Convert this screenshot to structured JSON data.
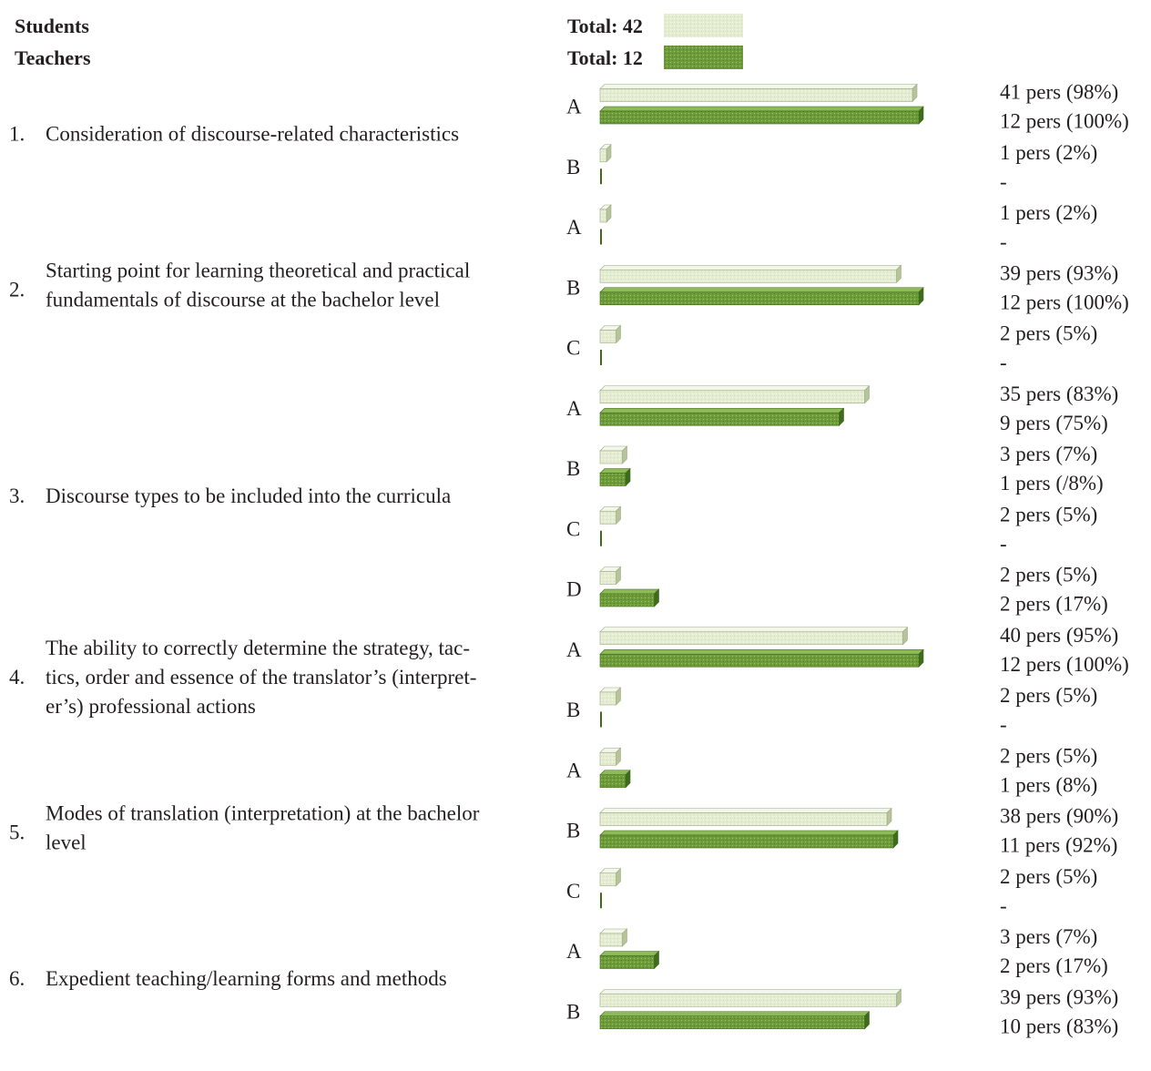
{
  "chart_data": {
    "type": "bar",
    "orientation": "horizontal",
    "series": [
      {
        "name": "Students",
        "total_label": "Total: 42",
        "total": 42,
        "fill_color": "#e2ebce",
        "edge_color": "#9aaa80"
      },
      {
        "name": "Teachers",
        "total_label": "Total: 12",
        "total": 12,
        "fill_color": "#6b9a38",
        "edge_color": "#3e6a1a"
      }
    ],
    "max_percent": 100,
    "questions": [
      {
        "number": "1.",
        "lines": [
          "Consideration of discourse-related characteristics"
        ],
        "options": [
          {
            "letter": "A",
            "students": {
              "pct": 98,
              "label": "41 pers (98%)"
            },
            "teachers": {
              "pct": 100,
              "label": "12 pers (100%)"
            }
          },
          {
            "letter": "B",
            "students": {
              "pct": 2,
              "label": "1 pers (2%)"
            },
            "teachers": {
              "pct": 0,
              "label": "-"
            }
          }
        ]
      },
      {
        "number": "2.",
        "lines": [
          "Starting point for learning theoretical and practical",
          "fundamentals of discourse at the bachelor level"
        ],
        "options": [
          {
            "letter": "A",
            "students": {
              "pct": 2,
              "label": "1 pers (2%)"
            },
            "teachers": {
              "pct": 0,
              "label": "-"
            }
          },
          {
            "letter": "B",
            "students": {
              "pct": 93,
              "label": "39 pers (93%)"
            },
            "teachers": {
              "pct": 100,
              "label": "12 pers (100%)"
            }
          },
          {
            "letter": "C",
            "students": {
              "pct": 5,
              "label": "2 pers (5%)"
            },
            "teachers": {
              "pct": 0,
              "label": "-"
            }
          }
        ]
      },
      {
        "number": "3.",
        "lines": [
          "Discourse types to be included into the curricula"
        ],
        "options": [
          {
            "letter": "A",
            "students": {
              "pct": 83,
              "label": "35 pers (83%)"
            },
            "teachers": {
              "pct": 75,
              "label": "9 pers (75%)"
            }
          },
          {
            "letter": "B",
            "students": {
              "pct": 7,
              "label": "3 pers (7%)"
            },
            "teachers": {
              "pct": 8,
              "label": "1 pers (/8%)"
            }
          },
          {
            "letter": "C",
            "students": {
              "pct": 5,
              "label": "2 pers (5%)"
            },
            "teachers": {
              "pct": 0,
              "label": "-"
            }
          },
          {
            "letter": "D",
            "students": {
              "pct": 5,
              "label": "2 pers (5%)"
            },
            "teachers": {
              "pct": 17,
              "label": "2 pers (17%)"
            }
          }
        ]
      },
      {
        "number": "4.",
        "lines": [
          "The ability to correctly determine the strategy, tac-",
          "tics, order and essence of the translator’s (interpret-",
          "er’s) professional actions"
        ],
        "options": [
          {
            "letter": "A",
            "students": {
              "pct": 95,
              "label": "40 pers (95%)"
            },
            "teachers": {
              "pct": 100,
              "label": "12 pers (100%)"
            }
          },
          {
            "letter": "B",
            "students": {
              "pct": 5,
              "label": "2 pers (5%)"
            },
            "teachers": {
              "pct": 0,
              "label": "-"
            }
          }
        ]
      },
      {
        "number": "5.",
        "lines": [
          "Modes of translation (interpretation) at the bachelor",
          "level"
        ],
        "options": [
          {
            "letter": "A",
            "students": {
              "pct": 5,
              "label": "2 pers (5%)"
            },
            "teachers": {
              "pct": 8,
              "label": "1 pers (8%)"
            }
          },
          {
            "letter": "B",
            "students": {
              "pct": 90,
              "label": "38 pers (90%)"
            },
            "teachers": {
              "pct": 92,
              "label": "11 pers (92%)"
            }
          },
          {
            "letter": "C",
            "students": {
              "pct": 5,
              "label": "2 pers (5%)"
            },
            "teachers": {
              "pct": 0,
              "label": "-"
            }
          }
        ]
      },
      {
        "number": "6.",
        "lines": [
          "Expedient teaching/learning forms and methods"
        ],
        "options": [
          {
            "letter": "A",
            "students": {
              "pct": 7,
              "label": "3 pers (7%)"
            },
            "teachers": {
              "pct": 17,
              "label": "2 pers (17%)"
            }
          },
          {
            "letter": "B",
            "students": {
              "pct": 93,
              "label": "39 pers (93%)"
            },
            "teachers": {
              "pct": 83,
              "label": "10 pers (83%)"
            }
          }
        ]
      }
    ]
  }
}
